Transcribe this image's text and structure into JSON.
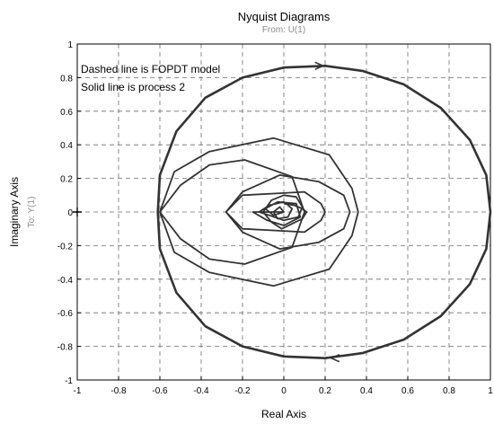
{
  "chart_data": {
    "type": "line",
    "title": "Nyquist Diagrams",
    "subtitle": "From: U(1)",
    "xlabel": "Real Axis",
    "ylabel": "Imaginary Axis",
    "ylabel2": "To: Y(1)",
    "xlim": [
      -1,
      1
    ],
    "ylim": [
      -1,
      1
    ],
    "grid": true,
    "grid_style": "dashed",
    "x_ticks": [
      "-1",
      "-0.8",
      "-0.6",
      "-0.4",
      "-0.2",
      "0",
      "0.2",
      "0.4",
      "0.6",
      "0.8",
      "1"
    ],
    "y_ticks": [
      "1",
      "0.8",
      "0.6",
      "0.4",
      "0.2",
      "0",
      "-0.2",
      "-0.4",
      "-0.6",
      "-0.8",
      "-1"
    ],
    "annotations": [
      "Dashed line is FOPDT model",
      "Solid line is process 2"
    ],
    "critical_point": [
      -1,
      0
    ],
    "series": [
      {
        "style": "thick",
        "points": [
          [
            1.0,
            0.0
          ],
          [
            0.98,
            0.22
          ],
          [
            0.9,
            0.43
          ],
          [
            0.76,
            0.62
          ],
          [
            0.58,
            0.76
          ],
          [
            0.38,
            0.84
          ],
          [
            0.2,
            0.87
          ],
          [
            0.0,
            0.86
          ],
          [
            -0.2,
            0.8
          ],
          [
            -0.38,
            0.68
          ],
          [
            -0.52,
            0.48
          ],
          [
            -0.6,
            0.22
          ],
          [
            -0.61,
            0.0
          ],
          [
            -0.6,
            -0.22
          ],
          [
            -0.52,
            -0.48
          ],
          [
            -0.38,
            -0.68
          ],
          [
            -0.2,
            -0.8
          ],
          [
            0.0,
            -0.86
          ],
          [
            0.2,
            -0.87
          ],
          [
            0.38,
            -0.84
          ],
          [
            0.58,
            -0.76
          ],
          [
            0.76,
            -0.62
          ],
          [
            0.9,
            -0.43
          ],
          [
            0.98,
            -0.22
          ],
          [
            1.0,
            0.0
          ]
        ]
      },
      {
        "style": "thin",
        "points": [
          [
            -0.6,
            0.0
          ],
          [
            -0.53,
            0.24
          ],
          [
            -0.36,
            0.36
          ],
          [
            -0.05,
            0.44
          ],
          [
            0.22,
            0.34
          ],
          [
            0.33,
            0.14
          ],
          [
            0.36,
            0.0
          ],
          [
            0.33,
            -0.14
          ],
          [
            0.22,
            -0.34
          ],
          [
            -0.05,
            -0.44
          ],
          [
            -0.36,
            -0.36
          ],
          [
            -0.53,
            -0.24
          ],
          [
            -0.6,
            0.0
          ],
          [
            -0.5,
            0.16
          ],
          [
            -0.36,
            0.28
          ],
          [
            -0.19,
            0.31
          ],
          [
            0.04,
            0.21
          ],
          [
            0.1,
            0.0
          ],
          [
            0.04,
            -0.21
          ],
          [
            -0.19,
            -0.31
          ],
          [
            -0.36,
            -0.28
          ],
          [
            -0.5,
            -0.16
          ],
          [
            -0.6,
            0.0
          ]
        ]
      },
      {
        "style": "thin",
        "points": [
          [
            -0.28,
            0.0
          ],
          [
            -0.2,
            0.12
          ],
          [
            -0.02,
            0.22
          ],
          [
            0.17,
            0.18
          ],
          [
            0.29,
            0.1
          ],
          [
            0.32,
            0.0
          ],
          [
            0.29,
            -0.1
          ],
          [
            0.17,
            -0.18
          ],
          [
            -0.02,
            -0.22
          ],
          [
            -0.2,
            -0.12
          ],
          [
            -0.28,
            0.0
          ],
          [
            -0.2,
            0.1
          ],
          [
            -0.04,
            0.11
          ],
          [
            0.1,
            0.12
          ],
          [
            0.18,
            0.05
          ],
          [
            0.2,
            0.0
          ],
          [
            0.18,
            -0.05
          ],
          [
            0.1,
            -0.12
          ],
          [
            -0.04,
            -0.11
          ],
          [
            -0.2,
            -0.1
          ],
          [
            -0.28,
            0.0
          ]
        ]
      },
      {
        "style": "thin",
        "points": [
          [
            0.0,
            0.05
          ],
          [
            0.05,
            0.04
          ],
          [
            0.09,
            0.02
          ],
          [
            0.11,
            0.0
          ],
          [
            0.09,
            -0.04
          ],
          [
            0.04,
            -0.07
          ],
          [
            -0.01,
            -0.1
          ],
          [
            -0.06,
            -0.06
          ],
          [
            -0.1,
            0.0
          ],
          [
            -0.06,
            0.07
          ],
          [
            0.0,
            0.1
          ],
          [
            0.06,
            0.09
          ],
          [
            0.09,
            0.03
          ],
          [
            0.07,
            -0.03
          ],
          [
            0.0,
            -0.05
          ],
          [
            -0.07,
            -0.02
          ],
          [
            -0.12,
            0.0
          ],
          [
            -0.07,
            0.04
          ],
          [
            0.0,
            0.06
          ],
          [
            0.04,
            0.02
          ],
          [
            0.02,
            -0.03
          ],
          [
            -0.03,
            -0.04
          ],
          [
            -0.05,
            0.0
          ],
          [
            -0.02,
            0.03
          ],
          [
            0.0,
            0.0
          ],
          [
            -0.15,
            0.0
          ],
          [
            -0.08,
            -0.05
          ],
          [
            0.0,
            -0.08
          ],
          [
            0.08,
            -0.03
          ],
          [
            0.06,
            0.05
          ],
          [
            -0.03,
            0.06
          ],
          [
            -0.09,
            0.02
          ],
          [
            -0.05,
            -0.02
          ],
          [
            0.0,
            0.0
          ]
        ]
      }
    ],
    "arrows": [
      {
        "x": 0.19,
        "y": 0.87,
        "direction": "right"
      },
      {
        "x": 0.23,
        "y": -0.87,
        "direction": "left"
      }
    ]
  }
}
